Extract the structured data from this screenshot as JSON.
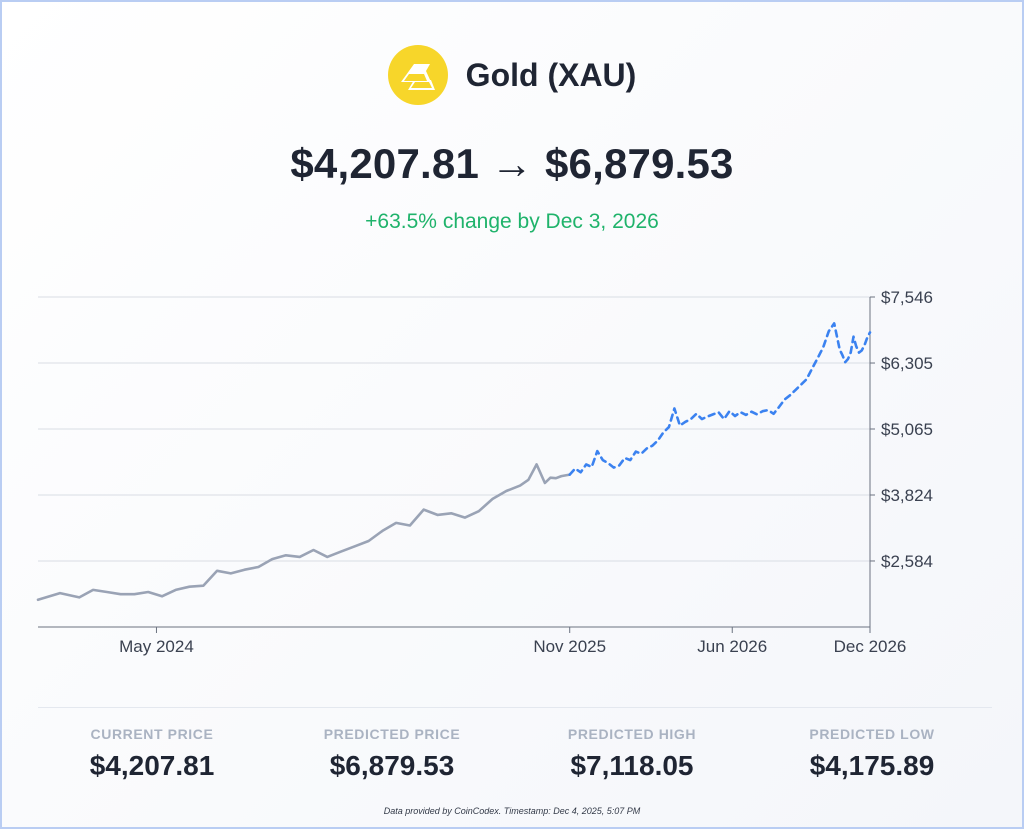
{
  "header": {
    "logo_icon": "gold-bars-icon",
    "asset_name": "Gold (XAU)",
    "price_from": "$4,207.81",
    "arrow": "→",
    "price_to": "$6,879.53",
    "change_text": "+63.5% change by Dec 3, 2026",
    "change_color": "#1fb36b"
  },
  "chart_data": {
    "type": "line",
    "title": "",
    "xlabel": "",
    "ylabel": "",
    "x_tick_labels": [
      "May 2024",
      "Nov 2025",
      "Jun 2026",
      "Dec 2026"
    ],
    "x_ticks": [
      2024.33,
      2025.83,
      2026.42,
      2026.92
    ],
    "y_tick_labels": [
      "$7,546",
      "$6,305",
      "$5,065",
      "$3,824",
      "$2,584"
    ],
    "y_ticks": [
      7546,
      6305,
      5065,
      3824,
      2584
    ],
    "ylim": [
      1343,
      7546
    ],
    "grid": true,
    "legend": "none",
    "series": [
      {
        "style": "solid",
        "color": "#9aa3b5",
        "x": [
          2023.9,
          2023.98,
          2024.05,
          2024.1,
          2024.15,
          2024.2,
          2024.25,
          2024.3,
          2024.35,
          2024.4,
          2024.45,
          2024.5,
          2024.55,
          2024.6,
          2024.65,
          2024.7,
          2024.75,
          2024.8,
          2024.85,
          2024.9,
          2024.95,
          2025.0,
          2025.05,
          2025.1,
          2025.15,
          2025.2,
          2025.25,
          2025.3,
          2025.35,
          2025.4,
          2025.45,
          2025.5,
          2025.55,
          2025.6,
          2025.65,
          2025.68,
          2025.71,
          2025.74,
          2025.76,
          2025.78,
          2025.8,
          2025.83
        ],
        "y": [
          1854,
          1980,
          1900,
          2040,
          2000,
          1960,
          1960,
          2000,
          1920,
          2040,
          2100,
          2120,
          2400,
          2350,
          2420,
          2470,
          2620,
          2690,
          2660,
          2790,
          2660,
          2760,
          2860,
          2960,
          3150,
          3300,
          3250,
          3550,
          3450,
          3480,
          3400,
          3520,
          3750,
          3900,
          4000,
          4110,
          4400,
          4050,
          4150,
          4140,
          4180,
          4208
        ]
      },
      {
        "style": "dashed",
        "color": "#3b82f0",
        "x": [
          2025.83,
          2025.85,
          2025.87,
          2025.89,
          2025.91,
          2025.93,
          2025.95,
          2025.97,
          2025.99,
          2026.01,
          2026.03,
          2026.05,
          2026.07,
          2026.09,
          2026.11,
          2026.13,
          2026.15,
          2026.17,
          2026.19,
          2026.21,
          2026.23,
          2026.25,
          2026.27,
          2026.29,
          2026.31,
          2026.33,
          2026.35,
          2026.37,
          2026.39,
          2026.41,
          2026.43,
          2026.45,
          2026.47,
          2026.49,
          2026.51,
          2026.53,
          2026.55,
          2026.57,
          2026.59,
          2026.61,
          2026.63,
          2026.65,
          2026.67,
          2026.69,
          2026.71,
          2026.73,
          2026.75,
          2026.77,
          2026.79,
          2026.81,
          2026.82,
          2026.83,
          2026.84,
          2026.85,
          2026.86,
          2026.87,
          2026.88,
          2026.89,
          2026.9,
          2026.91,
          2026.92
        ],
        "y": [
          4208,
          4320,
          4250,
          4400,
          4350,
          4650,
          4480,
          4420,
          4340,
          4380,
          4520,
          4480,
          4640,
          4600,
          4700,
          4750,
          4850,
          5000,
          5100,
          5450,
          5130,
          5200,
          5250,
          5350,
          5250,
          5300,
          5340,
          5380,
          5250,
          5400,
          5310,
          5380,
          5330,
          5390,
          5340,
          5400,
          5420,
          5350,
          5480,
          5620,
          5700,
          5800,
          5900,
          6000,
          6200,
          6400,
          6600,
          6900,
          7050,
          6560,
          6450,
          6320,
          6380,
          6500,
          6800,
          6620,
          6500,
          6540,
          6640,
          6780,
          6880
        ]
      }
    ]
  },
  "stats": [
    {
      "label": "CURRENT PRICE",
      "value": "$4,207.81"
    },
    {
      "label": "PREDICTED PRICE",
      "value": "$6,879.53"
    },
    {
      "label": "PREDICTED HIGH",
      "value": "$7,118.05"
    },
    {
      "label": "PREDICTED LOW",
      "value": "$4,175.89"
    }
  ],
  "footnote": "Data provided by CoinCodex. Timestamp: Dec 4, 2025, 5:07 PM"
}
